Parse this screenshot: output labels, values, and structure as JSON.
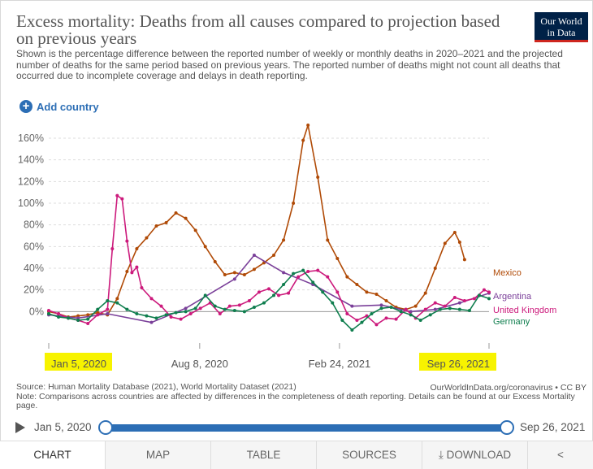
{
  "header": {
    "title": "Excess mortality: Deaths from all causes compared to projection based on previous years",
    "subtitle": "Shown is the percentage difference between the reported number of weekly or monthly deaths in 2020–2021 and the projected number of deaths for the same period based on previous years. The reported number of deaths might not count all deaths that occurred due to incomplete coverage and delays in death reporting.",
    "logo_line1": "Our World",
    "logo_line2": "in Data"
  },
  "controls": {
    "add_country": "Add country"
  },
  "chart_data": {
    "type": "line",
    "y_ticks": [
      "0%",
      "20%",
      "40%",
      "60%",
      "80%",
      "100%",
      "120%",
      "140%",
      "160%"
    ],
    "x_ticks": [
      "Jan 5, 2020",
      "Aug 8, 2020",
      "Feb 24, 2021",
      "Sep 26, 2021"
    ],
    "ylim": [
      -20,
      175
    ],
    "xlim": [
      "2020-01-05",
      "2021-09-26"
    ],
    "grid": "horizontal dashed",
    "legend": "inline labels at right end",
    "series": [
      {
        "name": "Mexico",
        "color": "#b04a06",
        "points": [
          [
            "2020-01-05",
            0
          ],
          [
            "2020-01-19",
            -2
          ],
          [
            "2020-02-02",
            -5
          ],
          [
            "2020-02-16",
            -4
          ],
          [
            "2020-03-01",
            -3
          ],
          [
            "2020-03-15",
            -1
          ],
          [
            "2020-03-29",
            -3
          ],
          [
            "2020-04-12",
            12
          ],
          [
            "2020-04-26",
            37
          ],
          [
            "2020-05-10",
            58
          ],
          [
            "2020-05-24",
            68
          ],
          [
            "2020-06-07",
            79
          ],
          [
            "2020-06-21",
            82
          ],
          [
            "2020-07-05",
            91
          ],
          [
            "2020-07-19",
            86
          ],
          [
            "2020-08-02",
            75
          ],
          [
            "2020-08-16",
            60
          ],
          [
            "2020-08-30",
            46
          ],
          [
            "2020-09-13",
            34
          ],
          [
            "2020-09-27",
            36
          ],
          [
            "2020-10-11",
            34
          ],
          [
            "2020-10-25",
            39
          ],
          [
            "2020-11-08",
            45
          ],
          [
            "2020-11-22",
            52
          ],
          [
            "2020-12-06",
            66
          ],
          [
            "2020-12-20",
            100
          ],
          [
            "2021-01-03",
            158
          ],
          [
            "2021-01-10",
            172
          ],
          [
            "2021-01-24",
            124
          ],
          [
            "2021-02-07",
            66
          ],
          [
            "2021-02-21",
            49
          ],
          [
            "2021-03-07",
            32
          ],
          [
            "2021-03-21",
            25
          ],
          [
            "2021-04-04",
            18
          ],
          [
            "2021-04-18",
            16
          ],
          [
            "2021-05-02",
            10
          ],
          [
            "2021-05-16",
            4
          ],
          [
            "2021-05-30",
            2
          ],
          [
            "2021-06-13",
            5
          ],
          [
            "2021-06-27",
            17
          ],
          [
            "2021-07-11",
            40
          ],
          [
            "2021-07-25",
            63
          ],
          [
            "2021-08-08",
            73
          ],
          [
            "2021-08-15",
            64
          ],
          [
            "2021-08-22",
            48
          ]
        ]
      },
      {
        "name": "Argentina",
        "color": "#7a3f99",
        "points": [
          [
            "2020-01-05",
            -3
          ],
          [
            "2020-02-16",
            -6
          ],
          [
            "2020-03-29",
            -2
          ],
          [
            "2020-05-31",
            -10
          ],
          [
            "2020-07-19",
            3
          ],
          [
            "2020-09-27",
            30
          ],
          [
            "2020-10-25",
            52
          ],
          [
            "2020-12-06",
            36
          ],
          [
            "2021-01-17",
            25
          ],
          [
            "2021-03-14",
            5
          ],
          [
            "2021-04-25",
            6
          ],
          [
            "2021-06-06",
            0
          ],
          [
            "2021-07-11",
            2
          ],
          [
            "2021-08-15",
            8
          ],
          [
            "2021-09-26",
            17
          ]
        ]
      },
      {
        "name": "United Kingdom",
        "color": "#cc1a7c",
        "points": [
          [
            "2020-01-05",
            1
          ],
          [
            "2020-01-19",
            -2
          ],
          [
            "2020-02-02",
            -6
          ],
          [
            "2020-02-16",
            -8
          ],
          [
            "2020-03-01",
            -11
          ],
          [
            "2020-03-15",
            -3
          ],
          [
            "2020-03-29",
            2
          ],
          [
            "2020-04-05",
            58
          ],
          [
            "2020-04-12",
            107
          ],
          [
            "2020-04-19",
            104
          ],
          [
            "2020-04-26",
            65
          ],
          [
            "2020-05-03",
            36
          ],
          [
            "2020-05-10",
            41
          ],
          [
            "2020-05-17",
            22
          ],
          [
            "2020-05-31",
            12
          ],
          [
            "2020-06-14",
            5
          ],
          [
            "2020-06-28",
            -5
          ],
          [
            "2020-07-12",
            -7
          ],
          [
            "2020-07-26",
            -2
          ],
          [
            "2020-08-09",
            3
          ],
          [
            "2020-08-23",
            8
          ],
          [
            "2020-09-06",
            -2
          ],
          [
            "2020-09-20",
            5
          ],
          [
            "2020-10-04",
            6
          ],
          [
            "2020-10-18",
            10
          ],
          [
            "2020-11-01",
            18
          ],
          [
            "2020-11-15",
            21
          ],
          [
            "2020-11-29",
            15
          ],
          [
            "2020-12-13",
            17
          ],
          [
            "2020-12-27",
            32
          ],
          [
            "2021-01-10",
            37
          ],
          [
            "2021-01-24",
            38
          ],
          [
            "2021-02-07",
            32
          ],
          [
            "2021-02-21",
            18
          ],
          [
            "2021-03-07",
            -2
          ],
          [
            "2021-03-21",
            -8
          ],
          [
            "2021-04-04",
            -4
          ],
          [
            "2021-04-18",
            -12
          ],
          [
            "2021-05-02",
            -6
          ],
          [
            "2021-05-16",
            -7
          ],
          [
            "2021-05-30",
            2
          ],
          [
            "2021-06-13",
            -6
          ],
          [
            "2021-06-27",
            2
          ],
          [
            "2021-07-11",
            8
          ],
          [
            "2021-07-25",
            5
          ],
          [
            "2021-08-08",
            13
          ],
          [
            "2021-08-22",
            10
          ],
          [
            "2021-09-05",
            12
          ],
          [
            "2021-09-19",
            20
          ],
          [
            "2021-09-26",
            18
          ]
        ]
      },
      {
        "name": "Germany",
        "color": "#0f7e4e",
        "points": [
          [
            "2020-01-05",
            -2
          ],
          [
            "2020-01-19",
            -5
          ],
          [
            "2020-02-02",
            -6
          ],
          [
            "2020-02-16",
            -8
          ],
          [
            "2020-03-01",
            -7
          ],
          [
            "2020-03-15",
            2
          ],
          [
            "2020-03-29",
            10
          ],
          [
            "2020-04-12",
            8
          ],
          [
            "2020-04-26",
            2
          ],
          [
            "2020-05-10",
            -2
          ],
          [
            "2020-05-24",
            -4
          ],
          [
            "2020-06-07",
            -6
          ],
          [
            "2020-06-21",
            -3
          ],
          [
            "2020-07-05",
            -1
          ],
          [
            "2020-07-19",
            0
          ],
          [
            "2020-08-02",
            3
          ],
          [
            "2020-08-16",
            15
          ],
          [
            "2020-08-30",
            5
          ],
          [
            "2020-09-13",
            2
          ],
          [
            "2020-09-27",
            1
          ],
          [
            "2020-10-11",
            0
          ],
          [
            "2020-10-25",
            4
          ],
          [
            "2020-11-08",
            8
          ],
          [
            "2020-11-22",
            15
          ],
          [
            "2020-12-06",
            25
          ],
          [
            "2020-12-20",
            35
          ],
          [
            "2021-01-03",
            38
          ],
          [
            "2021-01-17",
            27
          ],
          [
            "2021-01-31",
            18
          ],
          [
            "2021-02-14",
            8
          ],
          [
            "2021-02-28",
            -8
          ],
          [
            "2021-03-14",
            -17
          ],
          [
            "2021-03-28",
            -10
          ],
          [
            "2021-04-11",
            -2
          ],
          [
            "2021-04-25",
            3
          ],
          [
            "2021-05-09",
            4
          ],
          [
            "2021-05-23",
            0
          ],
          [
            "2021-06-06",
            -3
          ],
          [
            "2021-06-20",
            -8
          ],
          [
            "2021-07-04",
            -3
          ],
          [
            "2021-07-18",
            2
          ],
          [
            "2021-08-01",
            3
          ],
          [
            "2021-08-15",
            2
          ],
          [
            "2021-08-29",
            1
          ],
          [
            "2021-09-12",
            15
          ],
          [
            "2021-09-26",
            12
          ]
        ]
      }
    ]
  },
  "footer": {
    "source": "Source: Human Mortality Database (2021), World Mortality Dataset (2021)",
    "source_right": "OurWorldInData.org/coronavirus • CC BY",
    "note": "Note: Comparisons across countries are affected by differences in the completeness of death reporting. Details can be found at our Excess Mortality page."
  },
  "timeline": {
    "start": "Jan 5, 2020",
    "end": "Sep 26, 2021"
  },
  "tabs": [
    "CHART",
    "MAP",
    "TABLE",
    "SOURCES",
    "DOWNLOAD"
  ],
  "highlight_color": "#f7f300"
}
